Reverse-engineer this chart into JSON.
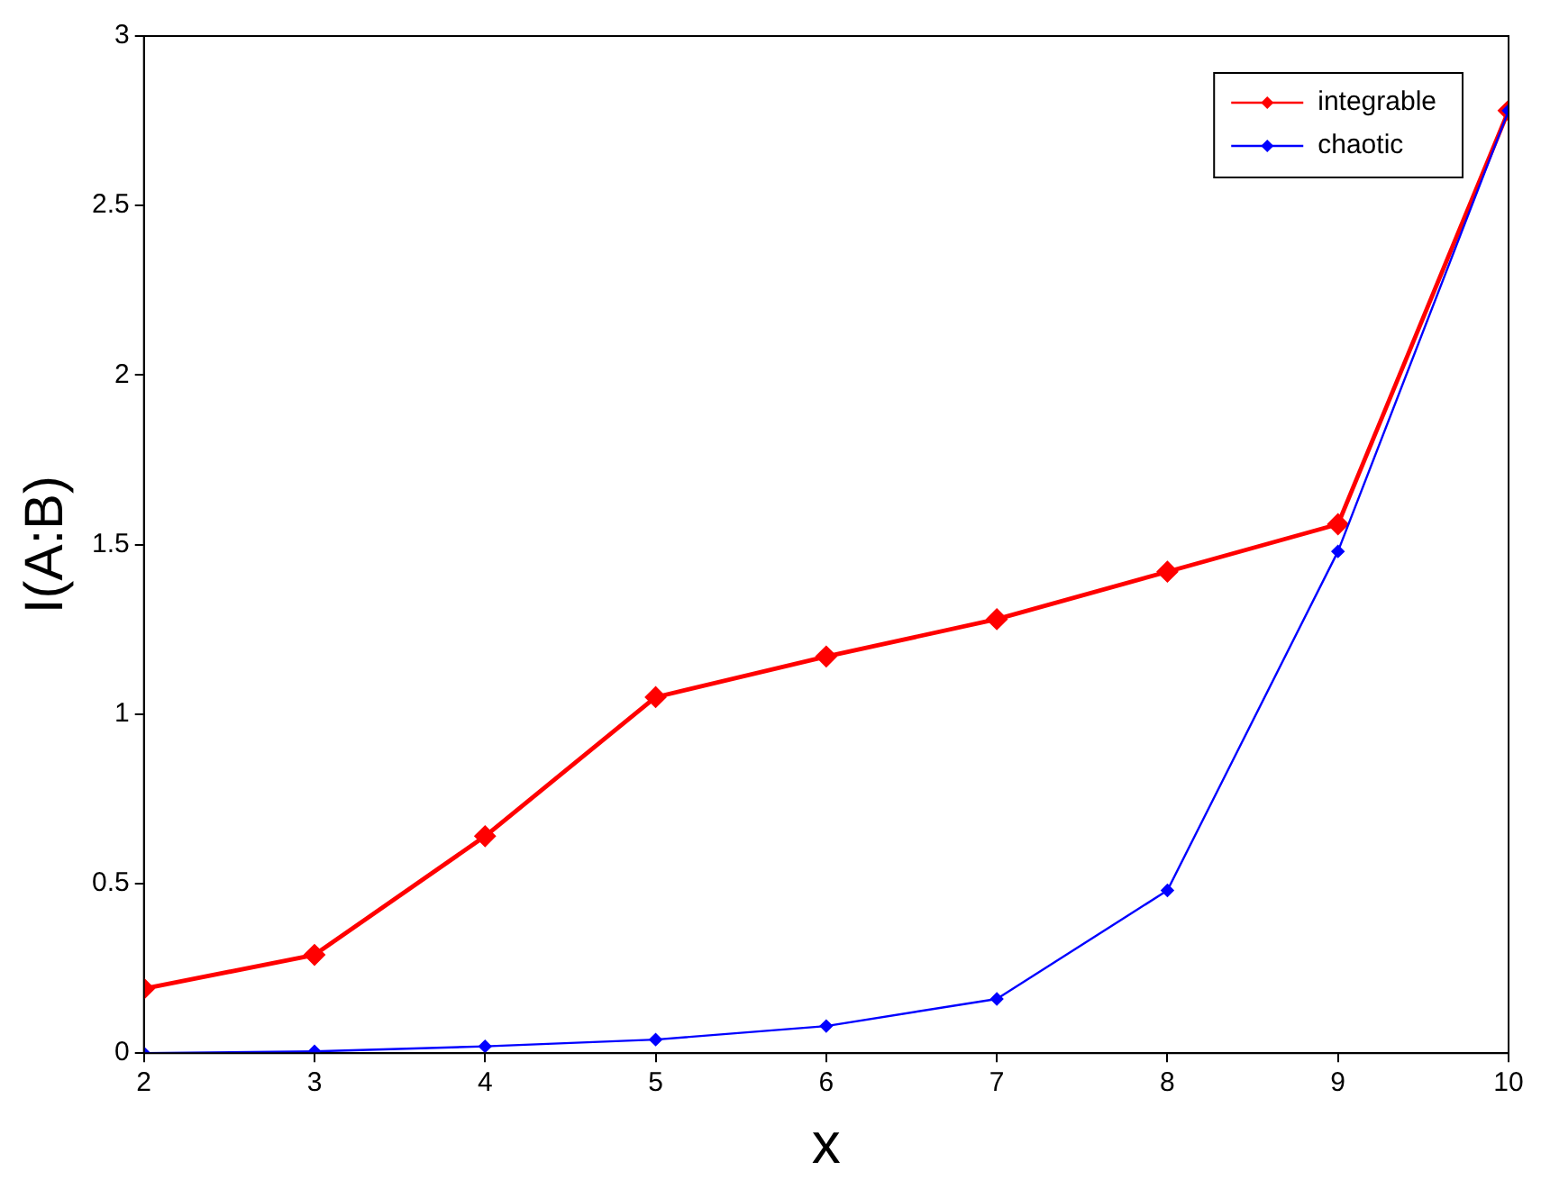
{
  "chart_data": {
    "type": "line",
    "xlabel": "x",
    "ylabel": "I(A:B)",
    "x": [
      2,
      3,
      4,
      5,
      6,
      7,
      8,
      9,
      10
    ],
    "series": [
      {
        "name": "integrable",
        "color": "#ff0000",
        "values": [
          0.19,
          0.29,
          0.64,
          1.05,
          1.17,
          1.28,
          1.42,
          1.56,
          2.78
        ]
      },
      {
        "name": "chaotic",
        "color": "#0000ff",
        "values": [
          0.0,
          0.005,
          0.02,
          0.04,
          0.08,
          0.16,
          0.48,
          1.48,
          2.78
        ]
      }
    ],
    "xlim": [
      2,
      10
    ],
    "xticks": [
      2,
      3,
      4,
      5,
      6,
      7,
      8,
      9,
      10
    ],
    "ylim": [
      0,
      3
    ],
    "yticks": [
      0,
      0.5,
      1,
      1.5,
      2,
      2.5,
      3
    ],
    "grid": false,
    "legend": "top right",
    "marker": "diamond",
    "line_style": "solid"
  }
}
